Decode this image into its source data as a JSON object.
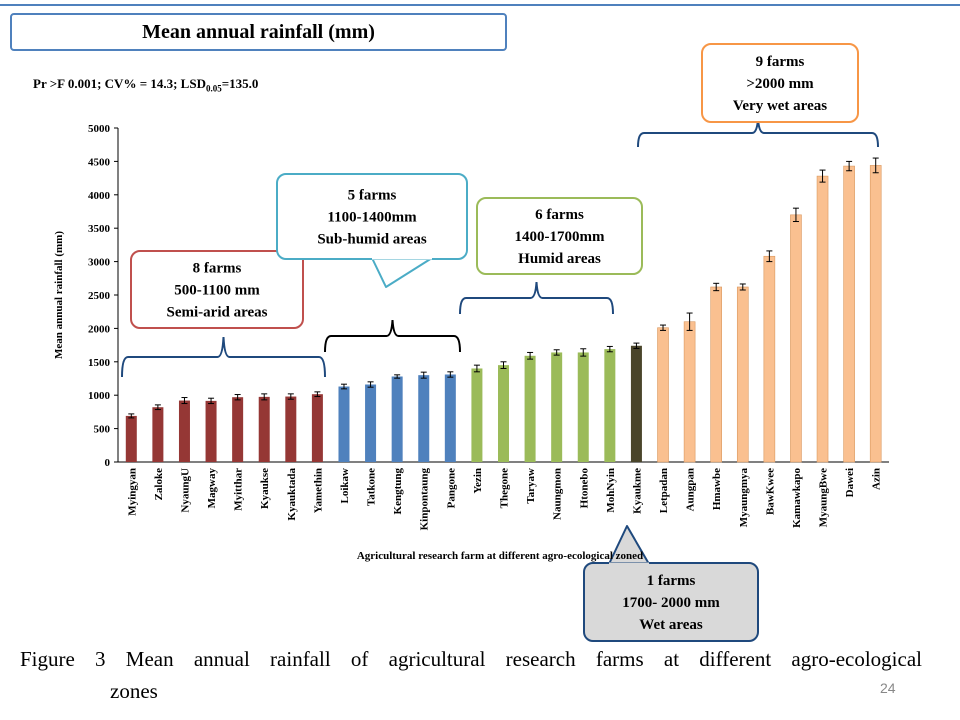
{
  "slide": {
    "title": "Mean annual rainfall (mm)",
    "stats_prefix": "Pr >F 0.001; CV% = 14.3; LSD",
    "stats_sub": "0.05",
    "stats_suffix": "=135.0",
    "caption_line1": "Figure 3 Mean annual rainfall of agricultural research farms at different agro-ecological",
    "caption_line2": "zones",
    "page_number": "24"
  },
  "colors": {
    "semi_arid": "#953735",
    "sub_humid": "#4f81bd",
    "humid": "#9bbb59",
    "wet": "#4a452a",
    "very_wet": "#fac090",
    "box_semi_arid": "#c0504d",
    "box_sub_humid": "#4bacc6",
    "box_humid": "#9bbb59",
    "box_wet": "#1f497d",
    "box_very_wet": "#f79646",
    "brace_blue": "#1f497d"
  },
  "chart_data": {
    "type": "bar",
    "title": "",
    "xlabel": "Agricultural research farm at different agro-ecological zoned",
    "ylabel": "Mean annual rainfall (mm)",
    "ylim": [
      0,
      5000
    ],
    "yticks": [
      0,
      500,
      1000,
      1500,
      2000,
      2500,
      3000,
      3500,
      4000,
      4500,
      5000
    ],
    "categories": [
      "Myingyan",
      "Zaloke",
      "NyaungU",
      "Magway",
      "Myitthar",
      "Kyaukse",
      "Kyauktada",
      "Yamethin",
      "Loikaw",
      "Tatkone",
      "Kengtung",
      "Kinpontaung",
      "Pangone",
      "Yezin",
      "Thegone",
      "Taryaw",
      "Naungmon",
      "Htonebo",
      "MohNyin",
      "Kyaukme",
      "Letpadan",
      "Aungpan",
      "Hmawbe",
      "Myaungmya",
      "BawKwee",
      "Kamawkapo",
      "MyaungBwe",
      "Dawei",
      "Azin"
    ],
    "values": [
      690,
      820,
      920,
      915,
      970,
      975,
      980,
      1015,
      1130,
      1160,
      1280,
      1300,
      1310,
      1400,
      1450,
      1590,
      1640,
      1640,
      1690,
      1740,
      2010,
      2100,
      2620,
      2620,
      3080,
      3700,
      4280,
      4430,
      4440
    ],
    "errors": [
      30,
      35,
      45,
      40,
      40,
      45,
      40,
      35,
      35,
      40,
      25,
      45,
      40,
      50,
      50,
      50,
      40,
      55,
      40,
      40,
      40,
      130,
      55,
      45,
      80,
      100,
      90,
      70,
      110
    ],
    "zones": [
      0,
      0,
      0,
      0,
      0,
      0,
      0,
      0,
      1,
      1,
      1,
      1,
      1,
      2,
      2,
      2,
      2,
      2,
      2,
      3,
      4,
      4,
      4,
      4,
      4,
      4,
      4,
      4,
      4
    ],
    "zone_names": [
      "Semi-arid areas",
      "Sub-humid areas",
      "Humid areas",
      "Wet areas",
      "Very wet areas"
    ],
    "grid": false,
    "legend": "none"
  },
  "annotations": [
    {
      "zone": 0,
      "line1": "8 farms",
      "line2": "500-1100 mm",
      "line3": "Semi-arid  areas"
    },
    {
      "zone": 1,
      "line1": "5 farms",
      "line2": "1100-1400mm",
      "line3": "Sub-humid  areas"
    },
    {
      "zone": 2,
      "line1": "6 farms",
      "line2": "1400-1700mm",
      "line3": "Humid  areas"
    },
    {
      "zone": 3,
      "line1": "1 farms",
      "line2": "1700- 2000 mm",
      "line3": "Wet areas"
    },
    {
      "zone": 4,
      "line1": "9 farms",
      "line2": ">2000 mm",
      "line3": "Very wet areas"
    }
  ]
}
